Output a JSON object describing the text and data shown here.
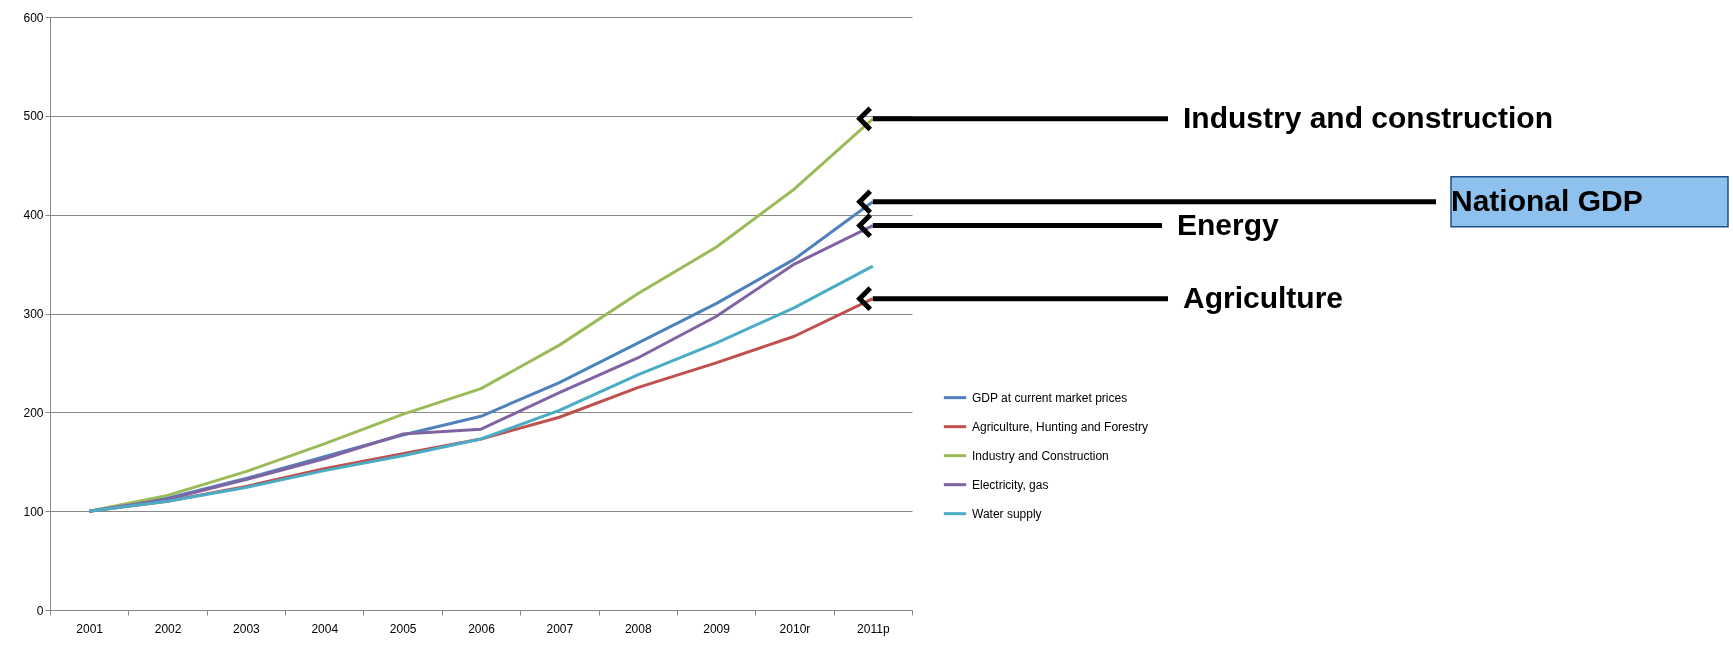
{
  "chart_data": {
    "type": "line",
    "categories": [
      "2001",
      "2002",
      "2003",
      "2004",
      "2005",
      "2006",
      "2007",
      "2008",
      "2009",
      "2010r",
      "2011p"
    ],
    "series": [
      {
        "name": "GDP at current market prices",
        "color": "#4f81bd",
        "values": [
          100,
          113,
          133,
          155,
          177,
          196,
          230,
          270,
          310,
          355,
          413
        ]
      },
      {
        "name": "Agriculture, Hunting and Forestry",
        "color": "#c0504d",
        "values": [
          100,
          110,
          125,
          143,
          158,
          173,
          195,
          225,
          250,
          277,
          315
        ]
      },
      {
        "name": "Industry and Construction",
        "color": "#9bbb59",
        "values": [
          100,
          116,
          140,
          168,
          198,
          224,
          268,
          320,
          367,
          426,
          497
        ]
      },
      {
        "name": "Electricity, gas",
        "color": "#8064a2",
        "values": [
          100,
          112,
          132,
          153,
          178,
          183,
          220,
          255,
          297,
          350,
          389
        ]
      },
      {
        "name": "Water supply",
        "color": "#4bacc6",
        "values": [
          100,
          110,
          124,
          141,
          156,
          173,
          202,
          238,
          270,
          306,
          348
        ]
      }
    ],
    "ylim": [
      0,
      600
    ],
    "yticks": [
      0,
      100,
      200,
      300,
      400,
      500,
      600
    ],
    "grid": "y",
    "legend": "right",
    "annotations": [
      {
        "text": "Industry and construction",
        "x": "2011p",
        "y": 497
      },
      {
        "text": "National GDP",
        "x": "2011p",
        "y": 413
      },
      {
        "text": "Energy",
        "x": "2011p",
        "y": 389
      },
      {
        "text": "Agriculture",
        "x": "2011p",
        "y": 315
      }
    ]
  }
}
